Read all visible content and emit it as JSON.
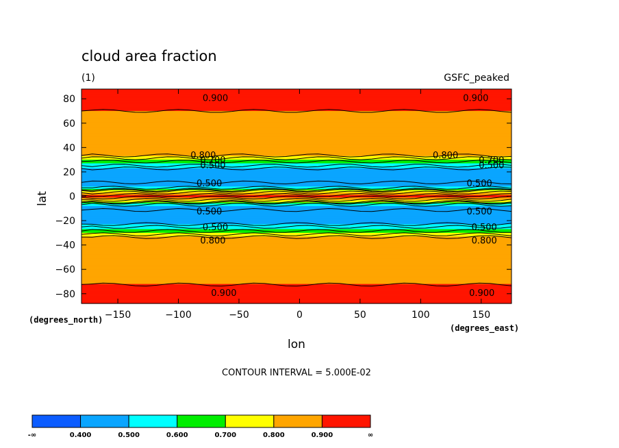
{
  "chart_data": {
    "type": "contour",
    "title": "cloud area fraction",
    "units": "(1)",
    "dataset": "GSFC_peaked",
    "xlabel": "lon",
    "ylabel": "lat",
    "x_units": "(degrees_east)",
    "y_units": "(degrees_north)",
    "xlim": [
      -180,
      175
    ],
    "ylim": [
      -88,
      88
    ],
    "x_ticks": [
      -150,
      -100,
      -50,
      0,
      50,
      100,
      150
    ],
    "y_ticks": [
      80,
      60,
      40,
      20,
      0,
      -20,
      -40,
      -60,
      -80
    ],
    "contour_interval": "CONTOUR INTERVAL = 5.000E-02",
    "zonal_profile_lat": [
      -88,
      -75,
      -70,
      -60,
      -45,
      -35,
      -32,
      -30,
      -27,
      -24,
      -20,
      -12,
      -8,
      -6,
      -4,
      -2,
      0,
      2,
      4,
      6,
      8,
      12,
      20,
      24,
      27,
      30,
      32,
      35,
      45,
      60,
      65,
      75,
      88
    ],
    "zonal_profile_value": [
      0.95,
      0.92,
      0.88,
      0.86,
      0.85,
      0.82,
      0.78,
      0.7,
      0.6,
      0.52,
      0.45,
      0.44,
      0.5,
      0.6,
      0.75,
      0.85,
      0.95,
      0.85,
      0.75,
      0.6,
      0.5,
      0.44,
      0.45,
      0.52,
      0.6,
      0.7,
      0.78,
      0.82,
      0.85,
      0.86,
      0.88,
      0.92,
      0.95
    ],
    "contour_labels": [
      "0.900",
      "0.900",
      "0.800",
      "0.800",
      "0.700",
      "0.700",
      "0.500",
      "0.500",
      "0.500",
      "0.500",
      "0.500",
      "0.500",
      "0.500",
      "0.500",
      "0.800",
      "0.800",
      "0.900",
      "0.900"
    ],
    "legend": {
      "colors": [
        "#0b5cff",
        "#0aa5ff",
        "#00ffff",
        "#00ee00",
        "#ffff00",
        "#ffa500",
        "#ff1500"
      ],
      "labels": [
        "-∞",
        "0.400",
        "0.500",
        "0.600",
        "0.700",
        "0.800",
        "0.900",
        "∞"
      ]
    }
  }
}
